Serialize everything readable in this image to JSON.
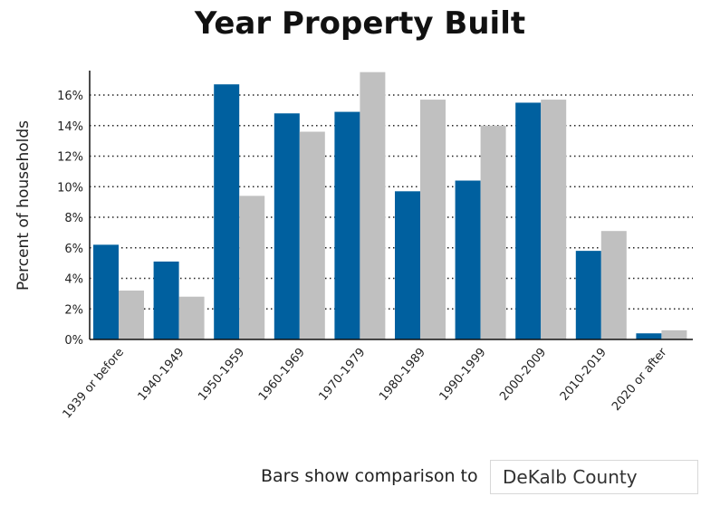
{
  "chart_data": {
    "type": "bar",
    "title": "Year Property Built",
    "ylabel": "Percent of households",
    "xlabel": "",
    "ylim": [
      0,
      17.6
    ],
    "yticks": [
      "0%",
      "2%",
      "4%",
      "6%",
      "8%",
      "10%",
      "12%",
      "14%",
      "16%"
    ],
    "grid": true,
    "categories": [
      "1939 or before",
      "1940-1949",
      "1950-1959",
      "1960-1969",
      "1970-1979",
      "1980-1989",
      "1990-1999",
      "2000-2009",
      "2010-2019",
      "2020 or after"
    ],
    "series": [
      {
        "color": "#00609f",
        "values": [
          6.2,
          5.1,
          16.7,
          14.8,
          14.9,
          9.7,
          10.4,
          15.5,
          5.8,
          0.4
        ]
      },
      {
        "color": "#c0c0c0",
        "values": [
          3.2,
          2.8,
          9.4,
          13.6,
          17.5,
          15.7,
          14.0,
          15.7,
          7.1,
          0.6
        ]
      }
    ]
  },
  "footer": {
    "compare_label": "Bars show comparison to",
    "compare_value": "DeKalb County"
  }
}
